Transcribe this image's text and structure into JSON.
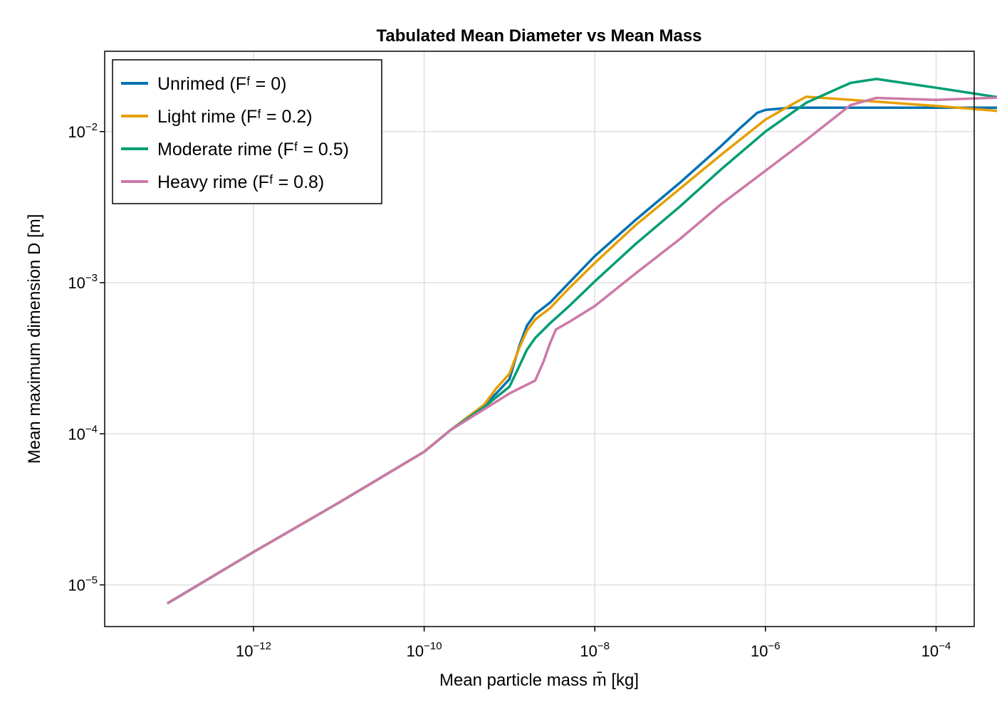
{
  "chart_data": {
    "type": "line",
    "title": "Tabulated Mean Diameter vs Mean Mass",
    "xlabel": "Mean particle mass m̄ [kg]",
    "ylabel": "Mean maximum dimension D [m]",
    "xscale": "log",
    "yscale": "log",
    "xlim": [
      1.8e-14,
      0.00028
    ],
    "ylim": [
      5.3e-06,
      0.034
    ],
    "xticks": [
      {
        "value": 1e-12,
        "base": "10",
        "exp": "−12"
      },
      {
        "value": 1e-10,
        "base": "10",
        "exp": "−10"
      },
      {
        "value": 1e-08,
        "base": "10",
        "exp": "−8"
      },
      {
        "value": 1e-06,
        "base": "10",
        "exp": "−6"
      },
      {
        "value": 0.0001,
        "base": "10",
        "exp": "−4"
      }
    ],
    "yticks": [
      {
        "value": 1e-05,
        "base": "10",
        "exp": "−5"
      },
      {
        "value": 0.0001,
        "base": "10",
        "exp": "−4"
      },
      {
        "value": 0.001,
        "base": "10",
        "exp": "−3"
      },
      {
        "value": 0.01,
        "base": "10",
        "exp": "−2"
      }
    ],
    "grid": true,
    "legend_position": "top-left",
    "series": [
      {
        "name": "Unrimed (Fᶠ = 0)",
        "color": "#0072b2",
        "points": [
          [
            1e-13,
            7.6e-06
          ],
          [
            1e-12,
            1.65e-05
          ],
          [
            1e-11,
            3.5e-05
          ],
          [
            1e-10,
            7.6e-05
          ],
          [
            2e-10,
            0.000105
          ],
          [
            5e-10,
            0.000155
          ],
          [
            7e-10,
            0.000185
          ],
          [
            1e-09,
            0.00023
          ],
          [
            1.3e-09,
            0.00038
          ],
          [
            1.6e-09,
            0.00052
          ],
          [
            2e-09,
            0.00062
          ],
          [
            3e-09,
            0.00074
          ],
          [
            5e-09,
            0.001
          ],
          [
            1e-08,
            0.0015
          ],
          [
            3e-08,
            0.0026
          ],
          [
            1e-07,
            0.0046
          ],
          [
            3e-07,
            0.008
          ],
          [
            5e-07,
            0.0105
          ],
          [
            8e-07,
            0.0133
          ],
          [
            1e-06,
            0.0139
          ],
          [
            2e-06,
            0.0144
          ],
          [
            1e-05,
            0.0144
          ],
          [
            0.0001,
            0.0144
          ],
          [
            0.001,
            0.0144
          ]
        ]
      },
      {
        "name": "Light rime (Fᶠ = 0.2)",
        "color": "#e69f00",
        "points": [
          [
            1e-13,
            7.6e-06
          ],
          [
            1e-12,
            1.65e-05
          ],
          [
            1e-11,
            3.5e-05
          ],
          [
            1e-10,
            7.6e-05
          ],
          [
            2e-10,
            0.000105
          ],
          [
            5e-10,
            0.000155
          ],
          [
            7e-10,
            0.0002
          ],
          [
            1e-09,
            0.00025
          ],
          [
            1.3e-09,
            0.00037
          ],
          [
            1.6e-09,
            0.00048
          ],
          [
            2e-09,
            0.00057
          ],
          [
            3e-09,
            0.00068
          ],
          [
            5e-09,
            0.00092
          ],
          [
            1e-08,
            0.00135
          ],
          [
            3e-08,
            0.0024
          ],
          [
            1e-07,
            0.0042
          ],
          [
            3e-07,
            0.007
          ],
          [
            1e-06,
            0.012
          ],
          [
            2e-06,
            0.015
          ],
          [
            3e-06,
            0.017
          ],
          [
            1e-05,
            0.0162
          ],
          [
            0.0001,
            0.0148
          ],
          [
            0.001,
            0.0133
          ]
        ]
      },
      {
        "name": "Moderate rime (Fᶠ = 0.5)",
        "color": "#009e73",
        "points": [
          [
            1e-13,
            7.6e-06
          ],
          [
            1e-12,
            1.65e-05
          ],
          [
            1e-11,
            3.5e-05
          ],
          [
            1e-10,
            7.6e-05
          ],
          [
            2e-10,
            0.000105
          ],
          [
            5e-10,
            0.00015
          ],
          [
            1e-09,
            0.000205
          ],
          [
            1.3e-09,
            0.00028
          ],
          [
            1.6e-09,
            0.00036
          ],
          [
            2e-09,
            0.00043
          ],
          [
            3e-09,
            0.00054
          ],
          [
            5e-09,
            0.0007
          ],
          [
            1e-08,
            0.00102
          ],
          [
            3e-08,
            0.0018
          ],
          [
            1e-07,
            0.0032
          ],
          [
            3e-07,
            0.0056
          ],
          [
            1e-06,
            0.01
          ],
          [
            3e-06,
            0.0155
          ],
          [
            6e-06,
            0.0185
          ],
          [
            1e-05,
            0.021
          ],
          [
            2e-05,
            0.0223
          ],
          [
            0.0001,
            0.0195
          ],
          [
            0.001,
            0.016
          ]
        ]
      },
      {
        "name": "Heavy rime (Fᶠ = 0.8)",
        "color": "#cc79a7",
        "points": [
          [
            1e-13,
            7.6e-06
          ],
          [
            1e-12,
            1.65e-05
          ],
          [
            1e-11,
            3.5e-05
          ],
          [
            1e-10,
            7.6e-05
          ],
          [
            2e-10,
            0.000105
          ],
          [
            5e-10,
            0.000145
          ],
          [
            1e-09,
            0.000185
          ],
          [
            2e-09,
            0.000225
          ],
          [
            2.5e-09,
            0.0003
          ],
          [
            3e-09,
            0.0004
          ],
          [
            3.5e-09,
            0.00049
          ],
          [
            5e-09,
            0.00055
          ],
          [
            1e-08,
            0.0007
          ],
          [
            3e-08,
            0.00115
          ],
          [
            1e-07,
            0.00195
          ],
          [
            3e-07,
            0.0033
          ],
          [
            1e-06,
            0.0055
          ],
          [
            3e-06,
            0.0088
          ],
          [
            1e-05,
            0.015
          ],
          [
            2e-05,
            0.0167
          ],
          [
            0.0001,
            0.0162
          ],
          [
            0.001,
            0.017
          ]
        ]
      }
    ]
  }
}
